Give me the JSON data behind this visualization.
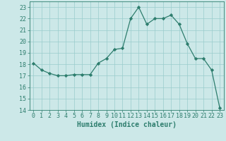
{
  "x": [
    0,
    1,
    2,
    3,
    4,
    5,
    6,
    7,
    8,
    9,
    10,
    11,
    12,
    13,
    14,
    15,
    16,
    17,
    18,
    19,
    20,
    21,
    22,
    23
  ],
  "y": [
    18.1,
    17.5,
    17.2,
    17.0,
    17.0,
    17.1,
    17.1,
    17.1,
    18.1,
    18.5,
    19.3,
    19.4,
    22.0,
    23.0,
    21.5,
    22.0,
    22.0,
    22.3,
    21.5,
    19.8,
    18.5,
    18.5,
    17.5,
    14.2
  ],
  "xlabel": "Humidex (Indice chaleur)",
  "ylabel": "",
  "ylim": [
    14,
    23.5
  ],
  "xlim": [
    -0.5,
    23.5
  ],
  "yticks": [
    14,
    15,
    16,
    17,
    18,
    19,
    20,
    21,
    22,
    23
  ],
  "xticks": [
    0,
    1,
    2,
    3,
    4,
    5,
    6,
    7,
    8,
    9,
    10,
    11,
    12,
    13,
    14,
    15,
    16,
    17,
    18,
    19,
    20,
    21,
    22,
    23
  ],
  "line_color": "#2d7d6d",
  "marker_color": "#2d7d6d",
  "bg_color": "#cce8e8",
  "grid_color": "#99cccc",
  "label_fontsize": 7,
  "tick_fontsize": 6,
  "spine_color": "#2d7d6d"
}
